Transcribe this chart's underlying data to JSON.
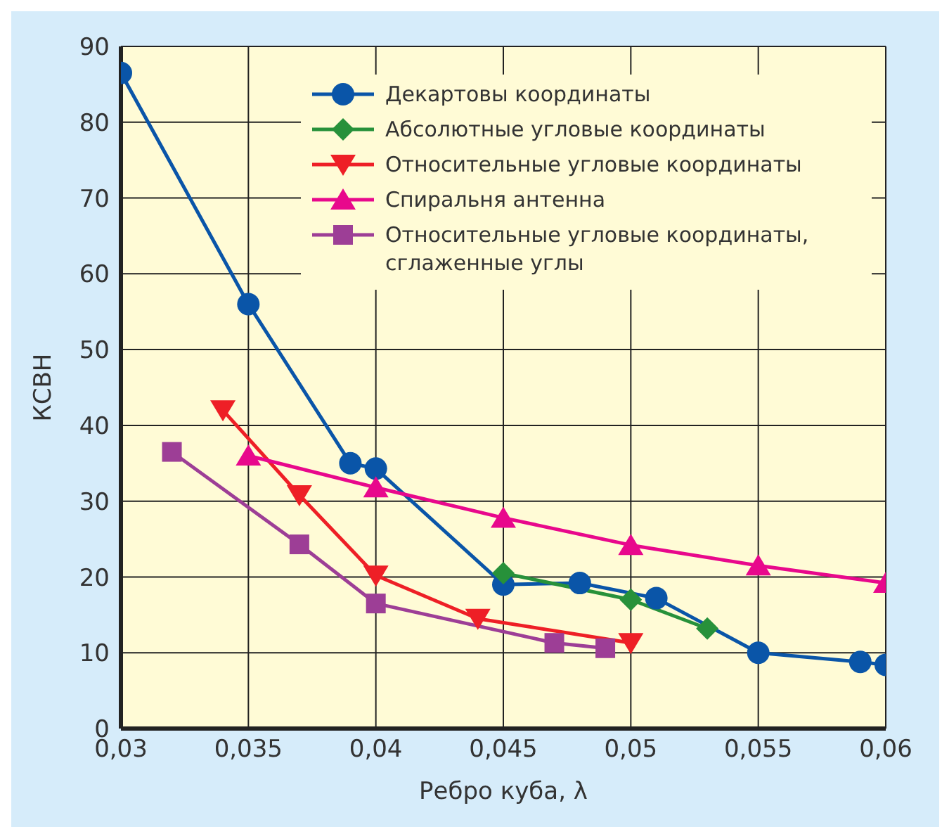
{
  "chart_data": {
    "type": "line",
    "xlabel": "Ребро куба, λ",
    "ylabel": "КСВН",
    "xlim": [
      0.03,
      0.06
    ],
    "xticks": [
      {
        "value": 0.03,
        "label": "0,03"
      },
      {
        "value": 0.035,
        "label": "0,035"
      },
      {
        "value": 0.04,
        "label": "0,04"
      },
      {
        "value": 0.045,
        "label": "0,045"
      },
      {
        "value": 0.05,
        "label": "0,05"
      },
      {
        "value": 0.055,
        "label": "0,055"
      },
      {
        "value": 0.06,
        "label": "0,06"
      }
    ],
    "ylim": [
      0,
      90
    ],
    "yticks": [
      0,
      10,
      20,
      30,
      40,
      50,
      60,
      70,
      80,
      90
    ],
    "grid": true,
    "legend": "top right",
    "series": [
      {
        "name": "Декартовы координаты",
        "color": "#0a55a8",
        "marker": "circle",
        "x": [
          0.03,
          0.035,
          0.039,
          0.04,
          0.045,
          0.048,
          0.051,
          0.055,
          0.059,
          0.06
        ],
        "values": [
          86.5,
          56,
          35,
          34.3,
          19,
          19.2,
          17.2,
          10,
          8.8,
          8.4
        ]
      },
      {
        "name": "Абсолютные угловые координаты",
        "color": "#27913a",
        "marker": "diamond",
        "x": [
          0.045,
          0.05,
          0.053
        ],
        "values": [
          20.5,
          17,
          13.2
        ]
      },
      {
        "name": "Относительные угловые координаты",
        "color": "#ee1f26",
        "marker": "triangle-down",
        "x": [
          0.034,
          0.037,
          0.04,
          0.044,
          0.05
        ],
        "values": [
          42,
          30.8,
          20.2,
          14.5,
          11.3
        ]
      },
      {
        "name": "Спиральня антенна",
        "color": "#e8088c",
        "marker": "triangle",
        "x": [
          0.035,
          0.04,
          0.045,
          0.05,
          0.055,
          0.06
        ],
        "values": [
          36,
          31.8,
          27.8,
          24.2,
          21.5,
          19.2
        ]
      },
      {
        "name": "Относительные угловые координаты, сглаженные углы",
        "color": "#9d3e96",
        "marker": "square",
        "x": [
          0.032,
          0.037,
          0.04,
          0.047,
          0.049
        ],
        "values": [
          36.5,
          24.3,
          16.5,
          11.3,
          10.6
        ]
      }
    ]
  }
}
